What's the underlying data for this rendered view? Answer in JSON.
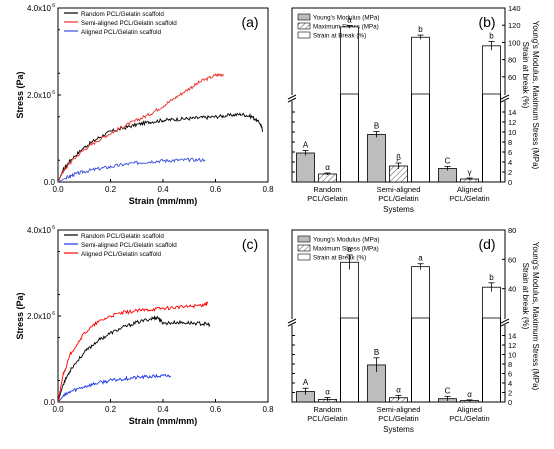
{
  "chart_data": [
    {
      "type": "line",
      "panel_label": "(a)",
      "xlabel": "Strain (mm/mm)",
      "ylabel": "Stress (Pa)",
      "xlim": [
        0,
        0.8
      ],
      "ylim": [
        0,
        4000000
      ],
      "x_ticks": [
        "0.0",
        "0.2",
        "0.4",
        "0.6",
        "0.8"
      ],
      "y_ticks": [
        {
          "base": "0.0",
          "exp": ""
        },
        {
          "base": "2.0x10",
          "exp": "6"
        },
        {
          "base": "4.0x10",
          "exp": "6"
        }
      ],
      "legend_position": "top-left",
      "grid": false,
      "series": [
        {
          "name": "Random PCL/Gelatin scaffold",
          "color": "#000000",
          "x": [
            0,
            0.02,
            0.05,
            0.1,
            0.15,
            0.2,
            0.25,
            0.3,
            0.35,
            0.4,
            0.45,
            0.5,
            0.55,
            0.6,
            0.65,
            0.7,
            0.74,
            0.77,
            0.78
          ],
          "y": [
            0,
            280000,
            520000,
            800000,
            1000000,
            1160000,
            1240000,
            1320000,
            1380000,
            1420000,
            1440000,
            1460000,
            1480000,
            1500000,
            1530000,
            1560000,
            1500000,
            1350000,
            1180000
          ]
        },
        {
          "name": "Semi-aligned PCL/Gelatin scaffold",
          "color": "#e8322b",
          "x": [
            0,
            0.02,
            0.05,
            0.1,
            0.15,
            0.2,
            0.25,
            0.3,
            0.35,
            0.4,
            0.45,
            0.5,
            0.55,
            0.6,
            0.63
          ],
          "y": [
            0,
            250000,
            470000,
            750000,
            950000,
            1120000,
            1280000,
            1420000,
            1560000,
            1750000,
            1950000,
            2150000,
            2330000,
            2450000,
            2480000
          ]
        },
        {
          "name": "Aligned PCL/Gelatin scaffold",
          "color": "#3b4fd8",
          "x": [
            0,
            0.03,
            0.06,
            0.1,
            0.15,
            0.2,
            0.25,
            0.3,
            0.35,
            0.4,
            0.45,
            0.5,
            0.56
          ],
          "y": [
            0,
            90000,
            170000,
            240000,
            300000,
            350000,
            400000,
            440000,
            470000,
            490000,
            500000,
            510000,
            510000
          ]
        }
      ]
    },
    {
      "type": "bar",
      "panel_label": "(b)",
      "xlabel": "Systems",
      "ylabel": "Young's Modulus, Maximum Stress (MPa)",
      "y2label": "Strain at break (%)",
      "categories": [
        "Random PCL/Gelatin",
        "Semi-aligned PCL/Gelatin",
        "Aligned PCL/Gelatin"
      ],
      "left_axis_lower": {
        "ylim": [
          0,
          16
        ],
        "ticks": [
          "0",
          "2",
          "4",
          "6",
          "8",
          "10",
          "12",
          "14"
        ]
      },
      "right_axis_upper": {
        "ylim": [
          40,
          140
        ],
        "ticks": [
          "60",
          "80",
          "100",
          "120",
          "140"
        ]
      },
      "legend_position": "top-left",
      "series": [
        {
          "name": "Young's Modulus (MPa)",
          "fill": "#bdbdbd",
          "values": [
            5.8,
            9.5,
            2.7
          ],
          "errors": [
            0.5,
            0.6,
            0.4
          ],
          "labels": [
            "A",
            "B",
            "C"
          ]
        },
        {
          "name": "Maximum Stress (MPa)",
          "fill": "hatch",
          "values": [
            1.6,
            3.2,
            0.6
          ],
          "errors": [
            0.2,
            0.6,
            0.2
          ],
          "labels": [
            "α",
            "β",
            "γ"
          ]
        },
        {
          "name": "Strain at Break (%)",
          "fill": "#ffffff",
          "values": [
            118,
            106,
            96
          ],
          "errors": [
            1.5,
            2.5,
            5
          ],
          "labels": [
            "a",
            "b",
            "b"
          ]
        }
      ]
    },
    {
      "type": "line",
      "panel_label": "(c)",
      "xlabel": "Strain (mm/mm)",
      "ylabel": "Stress (Pa)",
      "xlim": [
        0,
        0.8
      ],
      "ylim": [
        0,
        4000000
      ],
      "x_ticks": [
        "0.0",
        "0.2",
        "0.4",
        "0.6",
        "0.8"
      ],
      "y_ticks": [
        {
          "base": "0.0",
          "exp": ""
        },
        {
          "base": "2.0x10",
          "exp": "6"
        },
        {
          "base": "4.0x10",
          "exp": "6"
        }
      ],
      "legend_position": "top-left",
      "grid": false,
      "series": [
        {
          "name": "Random PCL/Gelatin scaffold",
          "color": "#000000",
          "x": [
            0,
            0.02,
            0.05,
            0.1,
            0.15,
            0.2,
            0.25,
            0.3,
            0.35,
            0.38,
            0.4,
            0.45,
            0.5,
            0.55,
            0.58
          ],
          "y": [
            0,
            420000,
            780000,
            1150000,
            1420000,
            1600000,
            1740000,
            1850000,
            1930000,
            1970000,
            1830000,
            1850000,
            1840000,
            1820000,
            1800000
          ]
        },
        {
          "name": "Semi-aligned PCL/Gelatin scaffold",
          "color": "#1a34e6",
          "x": [
            0,
            0.02,
            0.05,
            0.1,
            0.15,
            0.2,
            0.25,
            0.3,
            0.35,
            0.4,
            0.43
          ],
          "y": [
            0,
            130000,
            250000,
            360000,
            440000,
            500000,
            540000,
            570000,
            590000,
            605000,
            610000
          ]
        },
        {
          "name": "Aligned PCL/Gelatin scaffold",
          "color": "#ff0000",
          "x": [
            0,
            0.02,
            0.05,
            0.1,
            0.15,
            0.2,
            0.25,
            0.3,
            0.35,
            0.4,
            0.45,
            0.5,
            0.55,
            0.57
          ],
          "y": [
            0,
            650000,
            1150000,
            1600000,
            1850000,
            2000000,
            2080000,
            2120000,
            2150000,
            2180000,
            2200000,
            2220000,
            2260000,
            2300000
          ]
        }
      ]
    },
    {
      "type": "bar",
      "panel_label": "(d)",
      "xlabel": "Systems",
      "ylabel": "Young's Modulus, Maximum Stress (MPa)",
      "y2label": "Strain at break (%)",
      "categories": [
        "Random PCL/Gelatin",
        "Semi-aligned PCL/Gelatin",
        "Aligned PCL/Gelatin"
      ],
      "left_axis_lower": {
        "ylim": [
          0,
          16
        ],
        "ticks": [
          "0",
          "2",
          "4",
          "6",
          "8",
          "10",
          "12",
          "14"
        ]
      },
      "right_axis_upper": {
        "ylim": [
          20,
          80
        ],
        "ticks": [
          "40",
          "60",
          "80"
        ]
      },
      "legend_position": "top-left",
      "series": [
        {
          "name": "Young's Modulus (MPa)",
          "fill": "#bdbdbd",
          "values": [
            2.2,
            7.8,
            0.7
          ],
          "errors": [
            0.7,
            1.5,
            0.5
          ],
          "labels": [
            "A",
            "B",
            "C"
          ]
        },
        {
          "name": "Maximum Stress (MPa)",
          "fill": "hatch",
          "values": [
            0.55,
            0.9,
            0.3
          ],
          "errors": [
            0.4,
            0.5,
            0.15
          ],
          "labels": [
            "α",
            "α",
            "α"
          ]
        },
        {
          "name": "Strain at Break (%)",
          "fill": "#ffffff",
          "values": [
            58,
            55,
            41
          ],
          "errors": [
            5,
            2,
            3
          ],
          "labels": [
            "a",
            "a",
            "b"
          ]
        }
      ]
    }
  ]
}
